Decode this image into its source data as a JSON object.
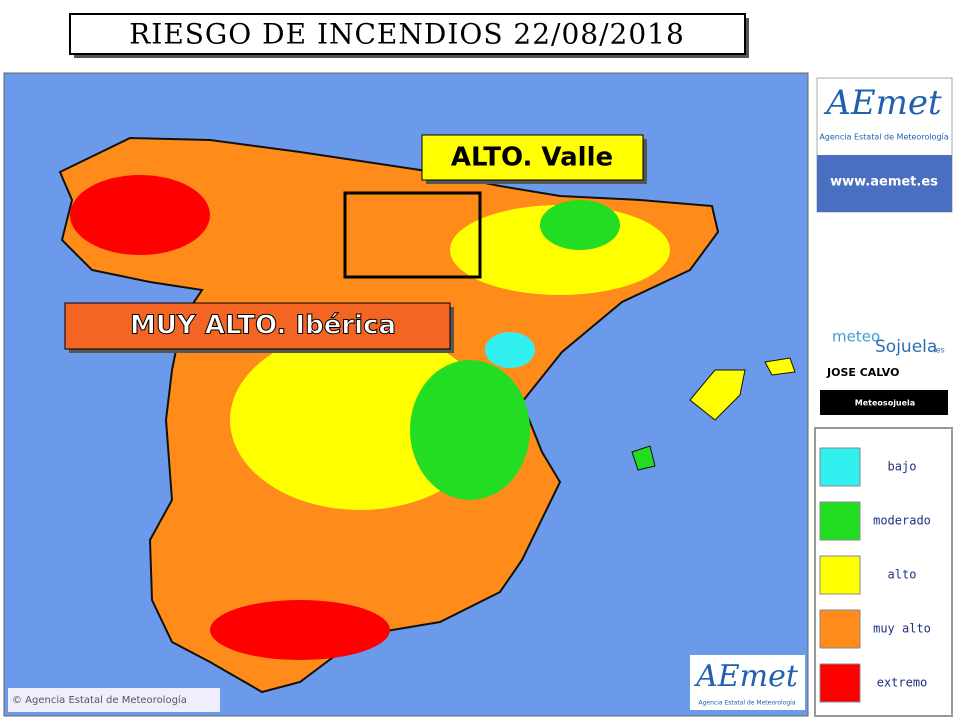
{
  "header": {
    "title": "RIESGO DE INCENDIOS 22/08/2018"
  },
  "callouts": [
    {
      "text": "ALTO. Valle",
      "color": "#ffff00"
    },
    {
      "text": "MUY ALTO. Ibérica",
      "color": "#f26522"
    }
  ],
  "sidebar": {
    "logo": "AEmet",
    "agency": "Agencia Estatal de Meteorología",
    "url": "www.aemet.es",
    "brand": {
      "prefix": "meteo",
      "name": "Sojuela",
      "suffix": ".es"
    },
    "author": "JOSE CALVO",
    "social": "Meteosojuela"
  },
  "legend": {
    "items": [
      {
        "label": "bajo",
        "color": "#33f0f0"
      },
      {
        "label": "moderado",
        "color": "#22dd22"
      },
      {
        "label": "alto",
        "color": "#ffff00"
      },
      {
        "label": "muy alto",
        "color": "#ff8c1a"
      },
      {
        "label": "extremo",
        "color": "#ff0000"
      }
    ]
  },
  "footer": {
    "copyright": "© Agencia Estatal de Meteorología",
    "logo": "AEmet",
    "agency": "Agencia Estatal de Meteorología"
  }
}
